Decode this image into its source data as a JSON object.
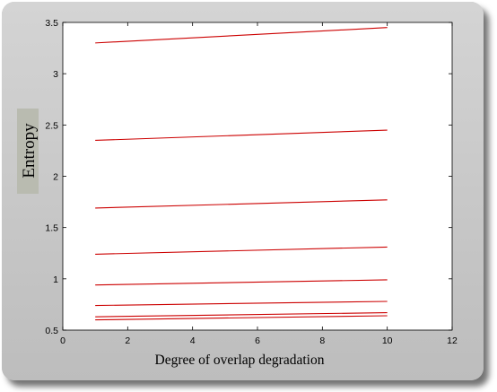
{
  "chart_data": {
    "type": "line",
    "xlabel": "Degree of overlap degradation",
    "ylabel": "Entropy",
    "xlim": [
      0,
      12
    ],
    "ylim": [
      0.5,
      3.5
    ],
    "xticks": [
      "0",
      "2",
      "4",
      "6",
      "8",
      "10",
      "12"
    ],
    "yticks": [
      "0.5",
      "1",
      "1.5",
      "2",
      "2.5",
      "3",
      "3.5"
    ],
    "grid": false,
    "line_color": "#cc0000",
    "x": [
      1,
      10
    ],
    "series": [
      {
        "values": [
          3.3,
          3.45
        ]
      },
      {
        "values": [
          2.35,
          2.45
        ]
      },
      {
        "values": [
          1.69,
          1.77
        ]
      },
      {
        "values": [
          1.24,
          1.31
        ]
      },
      {
        "values": [
          0.94,
          0.99
        ]
      },
      {
        "values": [
          0.74,
          0.78
        ]
      },
      {
        "values": [
          0.63,
          0.67
        ]
      },
      {
        "values": [
          0.6,
          0.64
        ]
      }
    ]
  }
}
